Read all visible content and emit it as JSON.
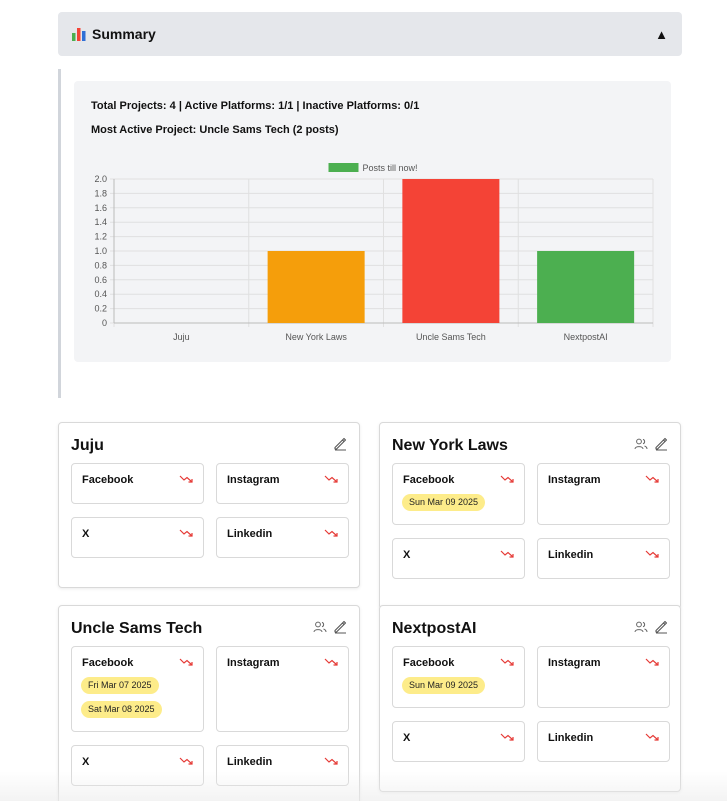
{
  "summary": {
    "title": "Summary",
    "toggle": "▲",
    "stats_line": "Total Projects: 4 | Active Platforms: 1/1 | Inactive Platforms: 0/1",
    "most_active_line": "Most Active Project: Uncle Sams Tech (2 posts)"
  },
  "chart_data": {
    "type": "bar",
    "categories": [
      "Juju",
      "New York Laws",
      "Uncle Sams Tech",
      "NextpostAI"
    ],
    "series": [
      {
        "name": "Posts till now!",
        "values": [
          0,
          1,
          2,
          1
        ]
      }
    ],
    "colors": [
      "#f59e0b",
      "#f59e0b",
      "#f44336",
      "#4caf50"
    ],
    "legend_color": "#4caf50",
    "ylim": [
      0,
      2.0
    ],
    "yticks": [
      "0",
      "0.2",
      "0.4",
      "0.6",
      "0.8",
      "1.0",
      "1.2",
      "1.4",
      "1.6",
      "1.8",
      "2.0"
    ],
    "grid": true,
    "legend": "top-center"
  },
  "projects": [
    {
      "name": "Juju",
      "show_users": false,
      "platforms": [
        {
          "name": "Facebook",
          "dates": []
        },
        {
          "name": "Instagram",
          "dates": []
        },
        {
          "name": "X",
          "dates": []
        },
        {
          "name": "Linkedin",
          "dates": []
        }
      ]
    },
    {
      "name": "New York Laws",
      "show_users": true,
      "platforms": [
        {
          "name": "Facebook",
          "dates": [
            "Sun Mar 09 2025"
          ]
        },
        {
          "name": "Instagram",
          "dates": []
        },
        {
          "name": "X",
          "dates": []
        },
        {
          "name": "Linkedin",
          "dates": []
        }
      ]
    },
    {
      "name": "Uncle Sams Tech",
      "show_users": true,
      "platforms": [
        {
          "name": "Facebook",
          "dates": [
            "Fri Mar 07 2025",
            "Sat Mar 08 2025"
          ]
        },
        {
          "name": "Instagram",
          "dates": []
        },
        {
          "name": "X",
          "dates": []
        },
        {
          "name": "Linkedin",
          "dates": []
        }
      ]
    },
    {
      "name": "NextpostAI",
      "show_users": true,
      "platforms": [
        {
          "name": "Facebook",
          "dates": [
            "Sun Mar 09 2025"
          ]
        },
        {
          "name": "Instagram",
          "dates": []
        },
        {
          "name": "X",
          "dates": []
        },
        {
          "name": "Linkedin",
          "dates": []
        }
      ]
    }
  ]
}
